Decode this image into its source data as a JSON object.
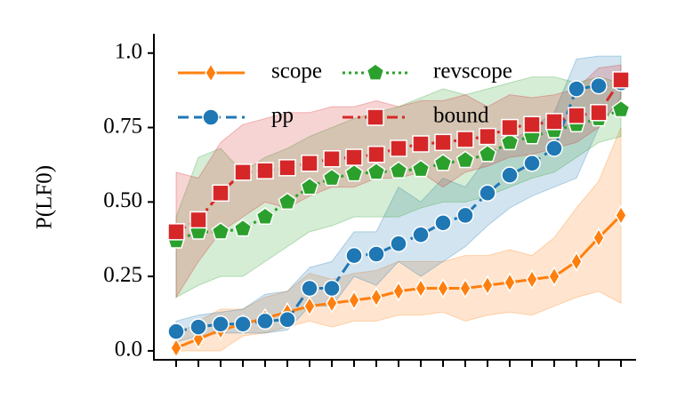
{
  "chart_data": {
    "type": "line",
    "ylabel": "P(LF0)",
    "categories": [
      null,
      null,
      null,
      null,
      null,
      null,
      null,
      null,
      null,
      null,
      null,
      null,
      null,
      null,
      null,
      null,
      null,
      null,
      null,
      null,
      null
    ],
    "ylim": [
      -0.03,
      1.05
    ],
    "yticks": [
      {
        "value": 0,
        "label": "0.0"
      },
      0.25,
      {
        "value": 0.5,
        "label": "0.50"
      },
      0.75,
      {
        "value": 1,
        "label": "1.0"
      }
    ],
    "series": [
      {
        "name": "scope",
        "color": "#ff7f0e",
        "marker": "diamond",
        "linestyle": "solid",
        "values": [
          0.01,
          0.04,
          0.07,
          0.09,
          0.11,
          0.13,
          0.15,
          0.16,
          0.17,
          0.18,
          0.2,
          0.21,
          0.21,
          0.21,
          0.22,
          0.23,
          0.24,
          0.25,
          0.3,
          0.38,
          0.455
        ],
        "lower": [
          0,
          0,
          0,
          0.05,
          0.06,
          0.08,
          0.1,
          0.08,
          0.1,
          0.1,
          0.12,
          0.12,
          0.13,
          0.1,
          0.12,
          0.13,
          0.12,
          0.15,
          0.18,
          0.2,
          0.16
        ],
        "upper": [
          0.05,
          0.1,
          0.14,
          0.14,
          0.18,
          0.2,
          0.26,
          0.24,
          0.26,
          0.27,
          0.3,
          0.3,
          0.3,
          0.32,
          0.32,
          0.34,
          0.32,
          0.38,
          0.48,
          0.57,
          0.75
        ]
      },
      {
        "name": "pp",
        "color": "#1f77b4",
        "marker": "circle",
        "linestyle": "dashed",
        "values": [
          0.065,
          0.08,
          0.09,
          0.09,
          0.1,
          0.105,
          0.21,
          0.21,
          0.32,
          0.325,
          0.36,
          0.39,
          0.43,
          0.455,
          0.53,
          0.59,
          0.63,
          0.68,
          0.88,
          0.89,
          0.9
        ],
        "lower": [
          0.03,
          0.05,
          0.06,
          0.06,
          0.06,
          0.07,
          0.15,
          0.15,
          0.25,
          0.22,
          0.3,
          0.25,
          0.3,
          0.35,
          0.42,
          0.48,
          0.52,
          0.55,
          0.58,
          0.75,
          0.85
        ],
        "upper": [
          0.1,
          0.12,
          0.13,
          0.14,
          0.19,
          0.2,
          0.28,
          0.3,
          0.4,
          0.4,
          0.55,
          0.5,
          0.58,
          0.55,
          0.65,
          0.7,
          0.75,
          0.8,
          0.98,
          0.99,
          0.99
        ]
      },
      {
        "name": "revscope",
        "color": "#2ca02c",
        "marker": "pentagon",
        "linestyle": "dotted",
        "values": [
          0.37,
          0.4,
          0.4,
          0.41,
          0.45,
          0.5,
          0.55,
          0.58,
          0.595,
          0.6,
          0.605,
          0.61,
          0.63,
          0.64,
          0.66,
          0.7,
          0.72,
          0.74,
          0.76,
          0.78,
          0.81
        ],
        "lower": [
          0.18,
          0.22,
          0.25,
          0.25,
          0.3,
          0.35,
          0.4,
          0.42,
          0.45,
          0.45,
          0.45,
          0.48,
          0.5,
          0.5,
          0.52,
          0.55,
          0.58,
          0.6,
          0.65,
          0.7,
          0.72
        ],
        "upper": [
          0.45,
          0.65,
          0.68,
          0.6,
          0.65,
          0.68,
          0.72,
          0.75,
          0.78,
          0.8,
          0.82,
          0.85,
          0.88,
          0.86,
          0.88,
          0.9,
          0.92,
          0.92,
          0.9,
          0.92,
          0.9
        ]
      },
      {
        "name": "bound",
        "color": "#d62728",
        "marker": "square",
        "linestyle": "dashdot",
        "values": [
          0.4,
          0.44,
          0.53,
          0.6,
          0.605,
          0.615,
          0.63,
          0.645,
          0.65,
          0.66,
          0.68,
          0.695,
          0.7,
          0.71,
          0.72,
          0.75,
          0.76,
          0.77,
          0.79,
          0.8,
          0.91
        ],
        "lower": [
          0.18,
          0.3,
          0.4,
          0.45,
          0.5,
          0.48,
          0.52,
          0.55,
          0.55,
          0.58,
          0.58,
          0.6,
          0.55,
          0.6,
          0.62,
          0.65,
          0.66,
          0.68,
          0.7,
          0.75,
          0.85
        ],
        "upper": [
          0.6,
          0.58,
          0.7,
          0.76,
          0.78,
          0.8,
          0.8,
          0.82,
          0.82,
          0.84,
          0.82,
          0.84,
          0.84,
          0.86,
          0.82,
          0.86,
          0.85,
          0.86,
          0.88,
          0.95,
          0.96
        ]
      }
    ]
  }
}
